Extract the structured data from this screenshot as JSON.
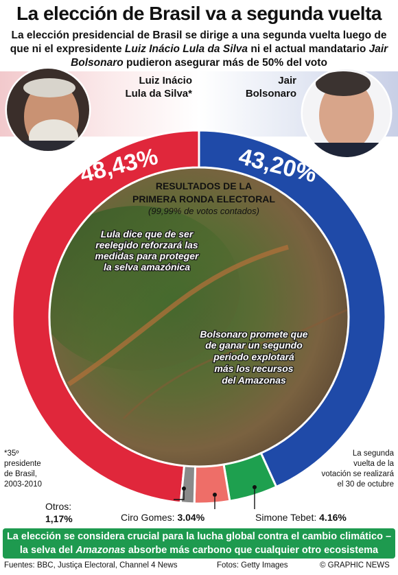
{
  "title": "La elección de Brasil va a segunda vuelta",
  "subtitle": {
    "part1": "La elección presidencial de Brasil se dirige a una segunda vuelta luego de que ni el expresidente ",
    "lula_italic": "Luiz Inácio Lula da Silva",
    "part2": " ni el actual mandatario ",
    "bolso_italic": "Jair Bolsonaro",
    "part3": " pudieron asegurar más de 50% del voto"
  },
  "candidates": {
    "lula": {
      "line1": "Luiz Inácio",
      "line2": "Lula da Silva*",
      "pct": "48,43%"
    },
    "bolsonaro": {
      "line1": "Jair",
      "line2": "Bolsonaro",
      "pct": "43,20%"
    }
  },
  "center": {
    "heading1": "RESULTADOS DE LA",
    "heading2": "PRIMERA RONDA ELECTORAL",
    "sub": "(99,99% de votos contados)",
    "quote_lula": [
      "Lula dice que de ser",
      "reelegido reforzará las",
      "medidas para proteger",
      "la selva amazónica"
    ],
    "quote_bolso": [
      "Bolsonaro promete que",
      "de ganar un segundo",
      "periodo explotará",
      "más los recursos",
      "del Amazonas"
    ]
  },
  "notes": {
    "left": [
      "*35º",
      "presidente",
      "de Brasil,",
      "2003-2010"
    ],
    "right": [
      "La segunda",
      "vuelta de la",
      "votación se realizará",
      "el 30 de octubre"
    ]
  },
  "labels": {
    "otros_name": "Otros:",
    "otros_value": "1,17%",
    "ciro_name": "Ciro Gomes: ",
    "ciro_value": "3.04%",
    "simone_name": "Simone Tebet: ",
    "simone_value": "4.16%"
  },
  "footer": {
    "part1": "La elección se considera crucial para la lucha global contra el cambio climático – la selva del ",
    "italic": "Amazonas",
    "part2": " absorbe más carbono que cualquier otro ecosistema"
  },
  "credits": {
    "sources": "Fuentes: BBC, Justiça Electoral, Channel 4 News",
    "photos": "Fotos: Getty Images",
    "brand": "© GRAPHIC NEWS"
  },
  "colors": {
    "lula": "#e0273b",
    "bolsonaro": "#1f4aa8",
    "simone": "#1ea04f",
    "ciro": "#ee6e68",
    "otros": "#8a8a8a",
    "footer": "#1e9a4f"
  },
  "chart_data": {
    "type": "pie",
    "categories": [
      "Luiz Inácio Lula da Silva",
      "Jair Bolsonaro",
      "Simone Tebet",
      "Ciro Gomes",
      "Otros"
    ],
    "values": [
      48.43,
      43.2,
      4.16,
      3.04,
      1.17
    ],
    "title": "RESULTADOS DE LA PRIMERA RONDA ELECTORAL"
  }
}
